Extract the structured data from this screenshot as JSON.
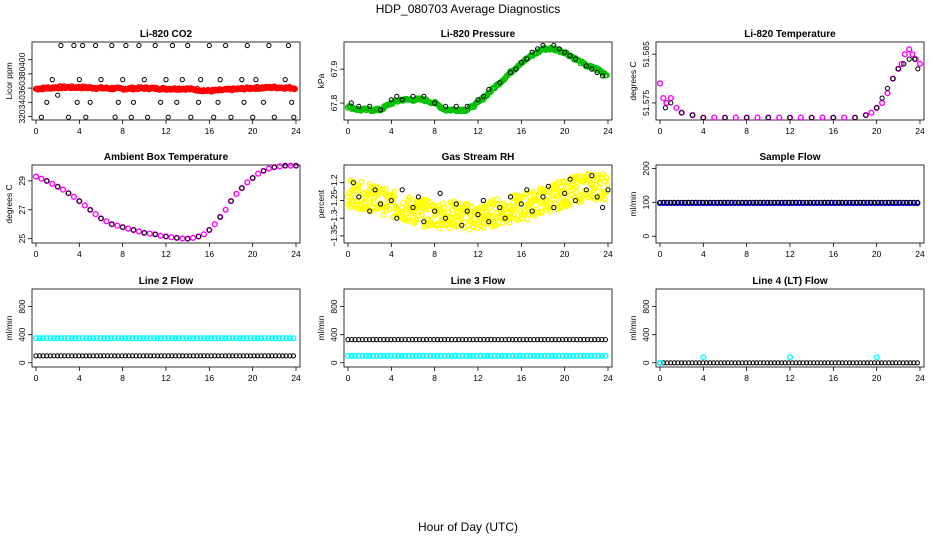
{
  "figure": {
    "title": "HDP_080703  Average Diagnostics",
    "xlabel": "Hour of Day (UTC)"
  },
  "chart_data": [
    {
      "type": "scatter",
      "title": "Li-820 CO2",
      "ylabel": "Licor ppm",
      "xlim": [
        0,
        24
      ],
      "ylim": [
        315,
        425
      ],
      "xticks": [
        0,
        4,
        8,
        12,
        16,
        20,
        24
      ],
      "yticks": [
        320,
        340,
        360,
        380,
        400
      ],
      "series": [
        {
          "name": "avg",
          "color": "#ff0000",
          "kind": "smooth",
          "x": [
            0,
            2,
            4,
            6,
            8,
            10,
            12,
            14,
            16,
            18,
            20,
            22,
            24
          ],
          "y": [
            359,
            361,
            361,
            360,
            359,
            360,
            359,
            359,
            356,
            358,
            360,
            361,
            360
          ]
        },
        {
          "name": "raw",
          "color": "#000000",
          "kind": "scatter",
          "x": [
            0.5,
            1,
            1.5,
            2,
            2.3,
            3,
            3.5,
            3.8,
            4,
            4.3,
            4.6,
            5,
            5.5,
            6,
            7,
            7.3,
            7.6,
            8,
            8.3,
            8.8,
            9,
            9.5,
            10,
            10.3,
            11,
            11.5,
            12,
            12.2,
            12.6,
            13,
            13.5,
            14,
            14.3,
            15,
            15.2,
            16,
            16.4,
            16.8,
            17,
            17.5,
            18,
            19,
            19.2,
            19.5,
            20,
            20.3,
            21,
            21.5,
            22,
            23,
            23.3,
            23.6,
            23.8
          ],
          "y": [
            319,
            340,
            372,
            350,
            420,
            319,
            420,
            340,
            372,
            420,
            319,
            340,
            420,
            372,
            420,
            319,
            340,
            372,
            420,
            319,
            340,
            420,
            372,
            319,
            420,
            340,
            372,
            319,
            420,
            340,
            372,
            420,
            319,
            340,
            372,
            420,
            319,
            340,
            372,
            420,
            319,
            372,
            340,
            420,
            319,
            372,
            340,
            420,
            319,
            372,
            420,
            340,
            319
          ]
        }
      ]
    },
    {
      "type": "scatter",
      "title": "Li-820 Pressure",
      "ylabel": "kPa",
      "xlim": [
        0,
        24
      ],
      "ylim": [
        67.75,
        67.98
      ],
      "xticks": [
        0,
        4,
        8,
        12,
        16,
        20,
        24
      ],
      "yticks": [
        67.8,
        67.9
      ],
      "series": [
        {
          "name": "avg",
          "color": "#00c000",
          "kind": "band",
          "x": [
            0,
            1,
            2,
            3,
            4,
            5,
            6,
            7,
            8,
            9,
            10,
            11,
            12,
            13,
            14,
            15,
            16,
            17,
            18,
            19,
            20,
            21,
            22,
            23,
            24
          ],
          "y": [
            67.79,
            67.78,
            67.78,
            67.78,
            67.8,
            67.81,
            67.81,
            67.81,
            67.8,
            67.78,
            67.78,
            67.78,
            67.8,
            67.83,
            67.86,
            67.89,
            67.92,
            67.94,
            67.96,
            67.96,
            67.95,
            67.93,
            67.91,
            67.9,
            67.88
          ]
        },
        {
          "name": "raw",
          "color": "#000000",
          "kind": "scatter",
          "x": [
            0.3,
            1,
            2,
            3,
            4,
            4.5,
            5,
            6,
            7,
            8,
            9,
            10,
            11,
            12,
            12.5,
            13,
            14,
            15,
            15.5,
            16,
            16.5,
            17,
            17.5,
            18,
            19,
            19.5,
            20,
            20.5,
            21,
            22,
            22.5,
            23,
            23.5
          ],
          "y": [
            67.8,
            67.79,
            67.79,
            67.78,
            67.81,
            67.82,
            67.81,
            67.82,
            67.82,
            67.8,
            67.79,
            67.79,
            67.79,
            67.81,
            67.82,
            67.84,
            67.86,
            67.89,
            67.9,
            67.92,
            67.93,
            67.95,
            67.96,
            67.97,
            67.97,
            67.96,
            67.95,
            67.94,
            67.93,
            67.91,
            67.9,
            67.89,
            67.88
          ]
        }
      ]
    },
    {
      "type": "scatter",
      "title": "Li-820 Temperature",
      "ylabel": "degrees C",
      "xlim": [
        0,
        24
      ],
      "ylim": [
        51.5715,
        51.5875
      ],
      "xticks": [
        0,
        4,
        8,
        12,
        16,
        20,
        24
      ],
      "yticks": [
        51.575,
        51.585
      ],
      "series": [
        {
          "name": "avg",
          "color": "#ff00ff",
          "kind": "scatter",
          "x": [
            0,
            0.3,
            0.6,
            1,
            1.5,
            2,
            3,
            4,
            5,
            6,
            7,
            8,
            9,
            10,
            11,
            12,
            13,
            14,
            15,
            16,
            17,
            18,
            19,
            19.5,
            20,
            20.5,
            21,
            21.5,
            22,
            22.3,
            22.6,
            23,
            23.3,
            23.6,
            24
          ],
          "y": [
            51.579,
            51.576,
            51.575,
            51.576,
            51.574,
            51.573,
            51.5725,
            51.572,
            51.572,
            51.572,
            51.572,
            51.572,
            51.572,
            51.572,
            51.572,
            51.572,
            51.572,
            51.572,
            51.572,
            51.572,
            51.572,
            51.572,
            51.5725,
            51.573,
            51.574,
            51.575,
            51.577,
            51.58,
            51.582,
            51.583,
            51.585,
            51.586,
            51.585,
            51.584,
            51.583
          ]
        },
        {
          "name": "raw",
          "color": "#000000",
          "kind": "scatter",
          "x": [
            0.5,
            1,
            2,
            3,
            4,
            6,
            8,
            10,
            12,
            14,
            16,
            18,
            19,
            20,
            20.5,
            21,
            21.5,
            22,
            22.5,
            23,
            23.5,
            23.8
          ],
          "y": [
            51.574,
            51.575,
            51.573,
            51.5725,
            51.572,
            51.572,
            51.572,
            51.572,
            51.572,
            51.572,
            51.572,
            51.572,
            51.5725,
            51.574,
            51.576,
            51.578,
            51.58,
            51.582,
            51.583,
            51.584,
            51.584,
            51.582
          ]
        }
      ]
    },
    {
      "type": "scatter",
      "title": "Ambient Box Temperature",
      "ylabel": "degrees C",
      "xlim": [
        0,
        24
      ],
      "ylim": [
        24.7,
        30.1
      ],
      "xticks": [
        0,
        4,
        8,
        12,
        16,
        20,
        24
      ],
      "yticks": [
        25,
        27,
        29
      ],
      "series": [
        {
          "name": "avg",
          "color": "#ff00ff",
          "kind": "scatter",
          "x": [
            0,
            0.5,
            1,
            1.5,
            2,
            2.5,
            3,
            3.5,
            4,
            4.5,
            5,
            5.5,
            6,
            6.5,
            7,
            7.5,
            8,
            8.5,
            9,
            9.5,
            10,
            10.5,
            11,
            11.5,
            12,
            12.5,
            13,
            13.5,
            14,
            14.5,
            15,
            15.5,
            16,
            16.5,
            17,
            17.5,
            18,
            18.5,
            19,
            19.5,
            20,
            20.5,
            21,
            21.5,
            22,
            22.5,
            23,
            23.5,
            24
          ],
          "y": [
            29.3,
            29.15,
            29.0,
            28.8,
            28.6,
            28.4,
            28.15,
            27.9,
            27.6,
            27.3,
            27.0,
            26.7,
            26.4,
            26.2,
            26.0,
            25.9,
            25.8,
            25.7,
            25.6,
            25.5,
            25.4,
            25.35,
            25.3,
            25.2,
            25.15,
            25.1,
            25.05,
            25.02,
            25.0,
            25.05,
            25.15,
            25.3,
            25.6,
            26.0,
            26.5,
            27.0,
            27.6,
            28.1,
            28.5,
            28.9,
            29.2,
            29.5,
            29.7,
            29.85,
            29.95,
            30.0,
            30.05,
            30.05,
            30.05
          ]
        },
        {
          "name": "raw",
          "color": "#000000",
          "kind": "scatter",
          "x": [
            1,
            2,
            3,
            4,
            5,
            6,
            7,
            8,
            9,
            10,
            11,
            12,
            13,
            14,
            15,
            16,
            17,
            18,
            19,
            20,
            21,
            22,
            23,
            24
          ],
          "y": [
            29.0,
            28.6,
            28.15,
            27.6,
            27.0,
            26.4,
            26.0,
            25.8,
            25.6,
            25.4,
            25.3,
            25.15,
            25.05,
            25.0,
            25.15,
            25.6,
            26.5,
            27.6,
            28.5,
            29.2,
            29.7,
            29.95,
            30.05,
            30.05
          ]
        }
      ]
    },
    {
      "type": "scatter",
      "title": "Gas Stream RH",
      "ylabel": "percent",
      "xlim": [
        0,
        24
      ],
      "ylim": [
        -1.37,
        -1.15
      ],
      "xticks": [
        0,
        4,
        8,
        12,
        16,
        20,
        24
      ],
      "yticks": [
        -1.35,
        -1.3,
        -1.25,
        -1.2
      ],
      "series": [
        {
          "name": "avg",
          "color": "#ffff00",
          "kind": "noisy",
          "x": [
            0,
            2,
            4,
            6,
            8,
            10,
            12,
            14,
            16,
            18,
            20,
            22,
            24
          ],
          "y": [
            -1.23,
            -1.24,
            -1.26,
            -1.28,
            -1.29,
            -1.29,
            -1.3,
            -1.28,
            -1.27,
            -1.25,
            -1.23,
            -1.21,
            -1.21
          ]
        },
        {
          "name": "raw",
          "color": "#000000",
          "kind": "scatter",
          "x": [
            0.5,
            1,
            2,
            2.5,
            3,
            4,
            4.5,
            5,
            6,
            6.5,
            7,
            8,
            8.5,
            9,
            10,
            10.5,
            11,
            12,
            12.5,
            13,
            14,
            14.5,
            15,
            16,
            16.5,
            17,
            18,
            18.5,
            19,
            20,
            20.5,
            21,
            22,
            22.5,
            23,
            23.5,
            24
          ],
          "y": [
            -1.2,
            -1.24,
            -1.28,
            -1.22,
            -1.26,
            -1.25,
            -1.3,
            -1.22,
            -1.27,
            -1.24,
            -1.31,
            -1.28,
            -1.23,
            -1.3,
            -1.26,
            -1.32,
            -1.28,
            -1.29,
            -1.25,
            -1.31,
            -1.27,
            -1.3,
            -1.24,
            -1.26,
            -1.22,
            -1.28,
            -1.24,
            -1.21,
            -1.27,
            -1.23,
            -1.19,
            -1.25,
            -1.22,
            -1.18,
            -1.24,
            -1.27,
            -1.22
          ]
        }
      ]
    },
    {
      "type": "scatter",
      "title": "Sample Flow",
      "ylabel": "ml/min",
      "xlim": [
        0,
        24
      ],
      "ylim": [
        -20,
        210
      ],
      "xticks": [
        0,
        4,
        8,
        12,
        16,
        20,
        24
      ],
      "yticks": [
        0,
        100,
        200
      ],
      "series": [
        {
          "name": "avg",
          "color": "#0000ff",
          "kind": "flat",
          "x": [
            0,
            24
          ],
          "y": [
            98,
            98
          ]
        },
        {
          "name": "raw",
          "color": "#000000",
          "kind": "flat",
          "x": [
            0,
            24
          ],
          "y": [
            100,
            100
          ]
        }
      ]
    },
    {
      "type": "scatter",
      "title": "Line 2 Flow",
      "ylabel": "ml/min",
      "xlim": [
        0,
        24
      ],
      "ylim": [
        -60,
        1050
      ],
      "xticks": [
        0,
        4,
        8,
        12,
        16,
        20,
        24
      ],
      "yticks": [
        0,
        400,
        800
      ],
      "series": [
        {
          "name": "avg",
          "color": "#00ffff",
          "kind": "flat",
          "x": [
            0,
            24
          ],
          "y": [
            350,
            350
          ]
        },
        {
          "name": "raw",
          "color": "#000000",
          "kind": "flat",
          "x": [
            0,
            24
          ],
          "y": [
            100,
            100
          ]
        }
      ]
    },
    {
      "type": "scatter",
      "title": "Line 3 Flow",
      "ylabel": "ml/min",
      "xlim": [
        0,
        24
      ],
      "ylim": [
        -60,
        1050
      ],
      "xticks": [
        0,
        4,
        8,
        12,
        16,
        20,
        24
      ],
      "yticks": [
        0,
        400,
        800
      ],
      "series": [
        {
          "name": "avg",
          "color": "#00ffff",
          "kind": "flat",
          "x": [
            0,
            24
          ],
          "y": [
            100,
            100
          ]
        },
        {
          "name": "raw",
          "color": "#000000",
          "kind": "flat",
          "x": [
            0,
            24
          ],
          "y": [
            330,
            330
          ]
        }
      ]
    },
    {
      "type": "scatter",
      "title": "Line 4 (LT) Flow",
      "ylabel": "ml/min",
      "xlim": [
        0,
        24
      ],
      "ylim": [
        -60,
        1050
      ],
      "xticks": [
        0,
        4,
        8,
        12,
        16,
        20,
        24
      ],
      "yticks": [
        0,
        400,
        800
      ],
      "series": [
        {
          "name": "raw",
          "color": "#000000",
          "kind": "flat",
          "x": [
            0,
            24
          ],
          "y": [
            0,
            0
          ]
        },
        {
          "name": "avg",
          "color": "#00ffff",
          "kind": "scatter",
          "x": [
            0,
            4,
            12,
            20
          ],
          "y": [
            0,
            80,
            80,
            80
          ]
        }
      ]
    }
  ]
}
